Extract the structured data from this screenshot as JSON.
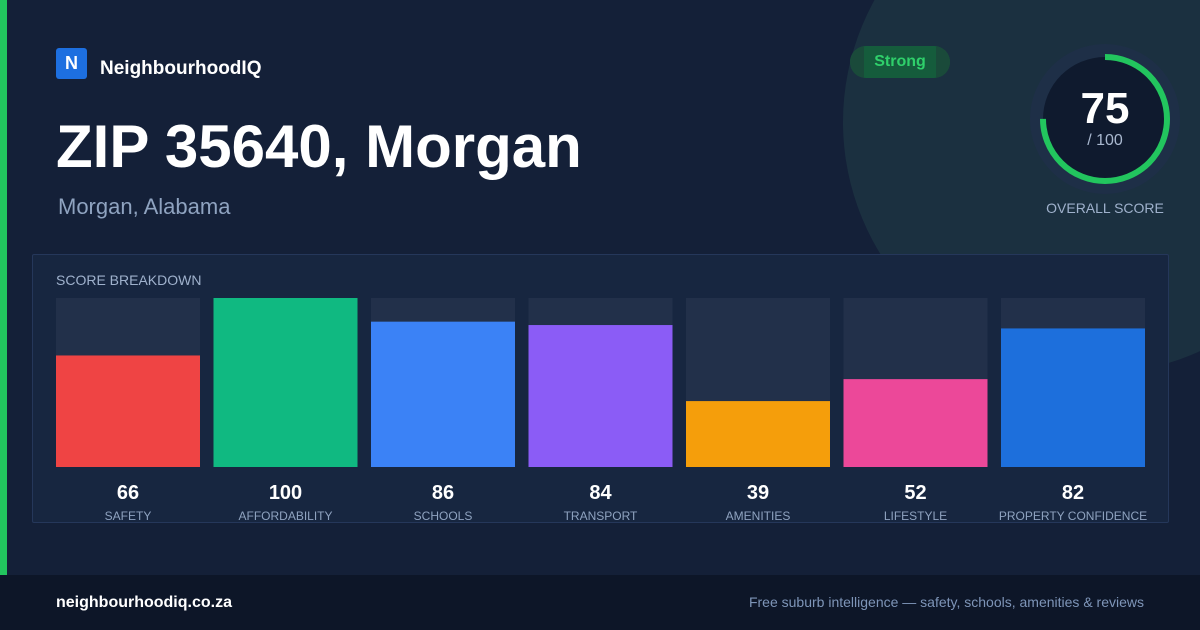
{
  "brand": {
    "logo_letter": "N",
    "name": "NeighbourhoodIQ"
  },
  "header": {
    "title": "ZIP 35640, Morgan",
    "subtitle": "Morgan, Alabama"
  },
  "rating": {
    "label": "Strong"
  },
  "overall": {
    "value": "75",
    "max": "/ 100",
    "label": "OVERALL SCORE",
    "fraction": 0.75,
    "ring_color": "#22c55e"
  },
  "breakdown": {
    "title": "SCORE BREAKDOWN"
  },
  "chart_data": {
    "type": "bar",
    "title": "SCORE BREAKDOWN",
    "categories": [
      "SAFETY",
      "AFFORDABILITY",
      "SCHOOLS",
      "TRANSPORT",
      "AMENITIES",
      "LIFESTYLE",
      "PROPERTY CONFIDENCE"
    ],
    "values": [
      66,
      100,
      86,
      84,
      39,
      52,
      82
    ],
    "ylim": [
      0,
      100
    ],
    "colors": [
      "#ef4444",
      "#10b981",
      "#3b82f6",
      "#8b5cf6",
      "#f59e0b",
      "#ec4899",
      "#1d6fdc"
    ],
    "track_color": "#22304a"
  },
  "footer": {
    "site": "neighbourhoodiq.co.za",
    "tagline": "Free suburb intelligence — safety, schools, amenities & reviews"
  }
}
